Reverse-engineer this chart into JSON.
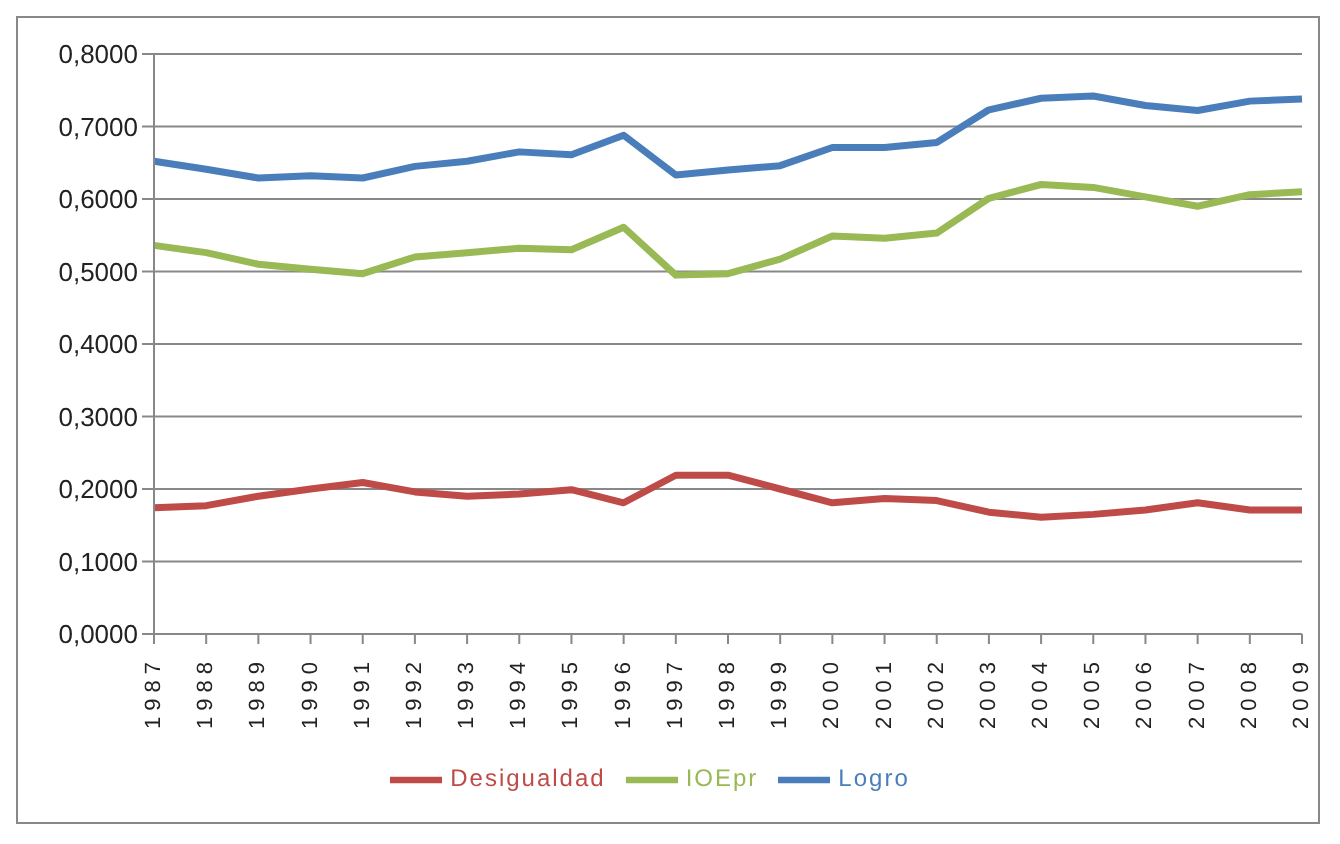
{
  "chart_data": {
    "type": "line",
    "categories": [
      "1987",
      "1988",
      "1989",
      "1990",
      "1991",
      "1992",
      "1993",
      "1994",
      "1995",
      "1996",
      "1997",
      "1998",
      "1999",
      "2000",
      "2001",
      "2002",
      "2003",
      "2004",
      "2005",
      "2006",
      "2007",
      "2008",
      "2009"
    ],
    "series": [
      {
        "name": "Logro",
        "color": "#4a7ebb",
        "values": [
          0.652,
          0.641,
          0.629,
          0.632,
          0.629,
          0.645,
          0.652,
          0.665,
          0.661,
          0.688,
          0.633,
          0.64,
          0.646,
          0.671,
          0.671,
          0.678,
          0.723,
          0.739,
          0.742,
          0.729,
          0.722,
          0.735,
          0.738
        ]
      },
      {
        "name": "Desigualdad",
        "color": "#be4b48",
        "values": [
          0.174,
          0.177,
          0.19,
          0.2,
          0.209,
          0.196,
          0.19,
          0.193,
          0.199,
          0.181,
          0.219,
          0.219,
          0.2,
          0.181,
          0.187,
          0.184,
          0.168,
          0.161,
          0.165,
          0.171,
          0.181,
          0.171,
          0.171
        ]
      },
      {
        "name": "IOEpr",
        "color": "#98b954",
        "values": [
          0.536,
          0.526,
          0.51,
          0.503,
          0.497,
          0.52,
          0.526,
          0.532,
          0.53,
          0.561,
          0.495,
          0.497,
          0.517,
          0.549,
          0.546,
          0.553,
          0.601,
          0.62,
          0.616,
          0.603,
          0.59,
          0.606,
          0.61
        ]
      }
    ],
    "ylim": [
      0,
      0.8
    ],
    "yticks": [
      {
        "value": 0,
        "label": "0,0000"
      },
      {
        "value": 0.1,
        "label": "0,1000"
      },
      {
        "value": 0.2,
        "label": "0,2000"
      },
      {
        "value": 0.3,
        "label": "0,3000"
      },
      {
        "value": 0.4,
        "label": "0,4000"
      },
      {
        "value": 0.5,
        "label": "0,5000"
      },
      {
        "value": 0.6,
        "label": "0,6000"
      },
      {
        "value": 0.7,
        "label": "0,7000"
      },
      {
        "value": 0.8,
        "label": "0,8000"
      }
    ],
    "grid": "y",
    "legend": "bottom",
    "marker": "none",
    "line_style": "solid"
  }
}
